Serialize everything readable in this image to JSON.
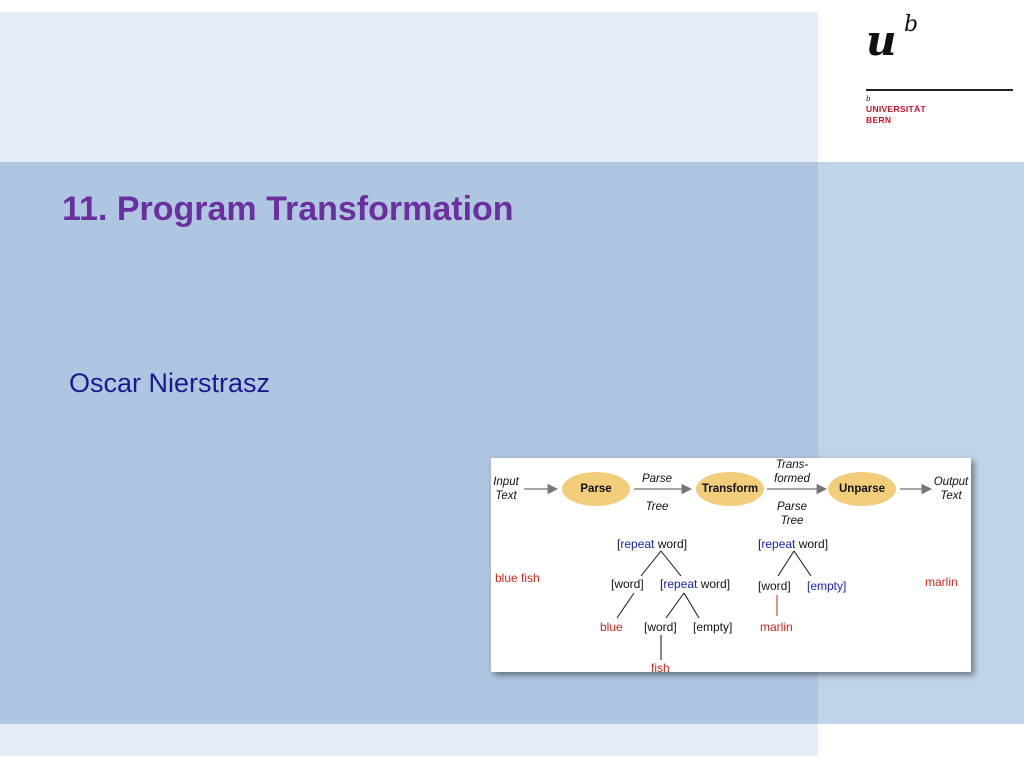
{
  "slide": {
    "title": "11. Program Transformation",
    "author": "Oscar Nierstrasz"
  },
  "logo": {
    "u": "u",
    "b": "b",
    "small_b": "b",
    "line1": "UNIVERSITÄT",
    "line2": "BERN"
  },
  "diagram": {
    "pipeline": {
      "input_line1": "Input",
      "input_line2": "Text",
      "parse": "Parse",
      "arrow1_top": "Parse",
      "arrow1_bottom": "Tree",
      "transform": "Transform",
      "arrow2_top_line1": "Trans-",
      "arrow2_top_line2": "formed",
      "arrow2_bottom_line1": "Parse",
      "arrow2_bottom_line2": "Tree",
      "unparse": "Unparse",
      "output_line1": "Output",
      "output_line2": "Text"
    },
    "input_example": "blue fish",
    "output_example": "marlin",
    "tree1": {
      "root_open": "[",
      "root_kw": "repeat",
      "root_rest": " word]",
      "word1": "[word]",
      "repeat2_open": "[",
      "repeat2_kw": "repeat",
      "repeat2_rest": " word]",
      "leaf_blue": "blue",
      "word2": "[word]",
      "empty": "[empty]",
      "leaf_fish": "fish"
    },
    "tree2": {
      "root_open": "[",
      "root_kw": "repeat",
      "root_rest": " word]",
      "word": "[word]",
      "empty": "[empty]",
      "leaf_marlin": "marlin"
    }
  }
}
